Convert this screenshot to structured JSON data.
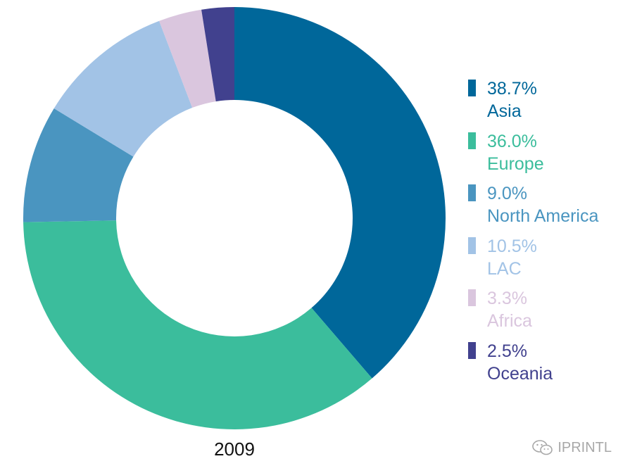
{
  "chart_data": {
    "type": "pie",
    "subtype": "donut",
    "title": "",
    "caption": "2009",
    "slices": [
      {
        "label": "Asia",
        "value": 38.7,
        "value_label": "38.7%",
        "color": "#00679a"
      },
      {
        "label": "Europe",
        "value": 36.0,
        "value_label": "36.0%",
        "color": "#3bbd9c"
      },
      {
        "label": "North America",
        "value": 9.0,
        "value_label": "9.0%",
        "color": "#4a95c0"
      },
      {
        "label": "LAC",
        "value": 10.5,
        "value_label": "10.5%",
        "color": "#a2c3e6"
      },
      {
        "label": "Africa",
        "value": 3.3,
        "value_label": "3.3%",
        "color": "#dac6de"
      },
      {
        "label": "Oceania",
        "value": 2.5,
        "value_label": "2.5%",
        "color": "#41418e"
      }
    ],
    "legend_position": "right"
  },
  "watermark": {
    "text": "IPRINTL",
    "icon": "wechat-icon"
  }
}
